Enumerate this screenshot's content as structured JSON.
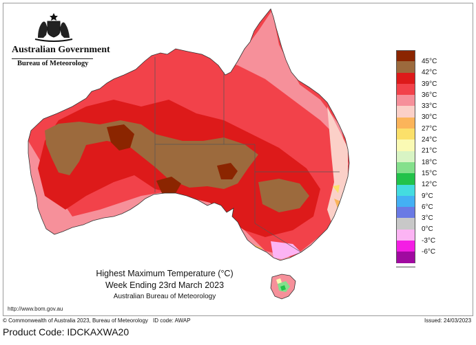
{
  "header": {
    "government": "Australian Government",
    "bureau": "Bureau of Meteorology"
  },
  "title": {
    "line1": "Highest Maximum Temperature (°C)",
    "line2": "Week Ending 23rd March 2023",
    "line3": "Australian Bureau of Meteorology"
  },
  "legend": [
    {
      "label": "45°C",
      "color": "#8b2500"
    },
    {
      "label": "42°C",
      "color": "#9c6a3d"
    },
    {
      "label": "39°C",
      "color": "#dd1a1a"
    },
    {
      "label": "36°C",
      "color": "#f2424a"
    },
    {
      "label": "33°C",
      "color": "#f6909a"
    },
    {
      "label": "30°C",
      "color": "#fbd0c8"
    },
    {
      "label": "27°C",
      "color": "#fbb45a"
    },
    {
      "label": "24°C",
      "color": "#fbe06a"
    },
    {
      "label": "21°C",
      "color": "#fafab4"
    },
    {
      "label": "18°C",
      "color": "#d8f4c4"
    },
    {
      "label": "15°C",
      "color": "#84e08c"
    },
    {
      "label": "12°C",
      "color": "#22c24a"
    },
    {
      "label": "9°C",
      "color": "#44dce0"
    },
    {
      "label": "6°C",
      "color": "#44b0f4"
    },
    {
      "label": "3°C",
      "color": "#6a7ae4"
    },
    {
      "label": "0°C",
      "color": "#c8c8c8"
    },
    {
      "label": "-3°C",
      "color": "#fcb4f4"
    },
    {
      "label": "-6°C",
      "color": "#f41ee4"
    },
    {
      "label": "",
      "color": "#a00aa0"
    }
  ],
  "footer": {
    "url": "http://www.bom.gov.au",
    "copyright": "© Commonwealth of Australia 2023, Bureau of Meteorology",
    "id_code": "ID code: AWAP",
    "issued": "Issued: 24/03/2023",
    "product_code": "Product Code: IDCKAXWA20"
  },
  "icons": [
    "coat-of-arms-icon"
  ]
}
